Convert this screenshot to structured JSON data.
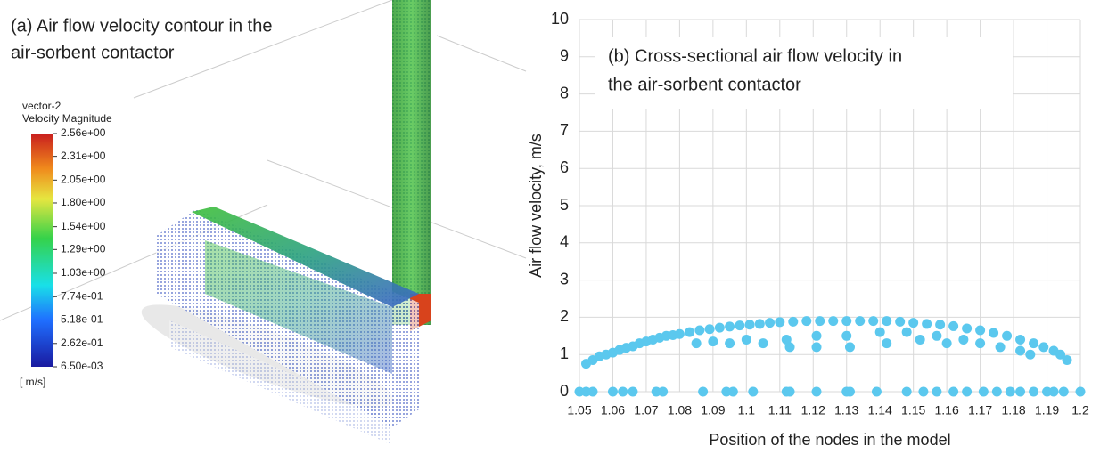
{
  "panel_a": {
    "title_lines": [
      "(a) Air flow velocity contour in the",
      "air-sorbent contactor"
    ],
    "colorbar": {
      "name": "vector-2",
      "quantity": "Velocity Magnitude",
      "unit": "[ m/s]",
      "ticks": [
        {
          "value": 2.56,
          "label": "2.56e+00"
        },
        {
          "value": 2.31,
          "label": "2.31e+00"
        },
        {
          "value": 2.05,
          "label": "2.05e+00"
        },
        {
          "value": 1.8,
          "label": "1.80e+00"
        },
        {
          "value": 1.54,
          "label": "1.54e+00"
        },
        {
          "value": 1.29,
          "label": "1.29e+00"
        },
        {
          "value": 1.03,
          "label": "1.03e+00"
        },
        {
          "value": 0.774,
          "label": "7.74e-01"
        },
        {
          "value": 0.518,
          "label": "5.18e-01"
        },
        {
          "value": 0.262,
          "label": "2.62e-01"
        },
        {
          "value": 0.0065,
          "label": "6.50e-03"
        }
      ]
    }
  },
  "chart_data": {
    "type": "scatter",
    "annotation_lines": [
      "(b) Cross-sectional air flow velocity in",
      "the air-sorbent contactor"
    ],
    "xlabel": "Position of the nodes in the model",
    "ylabel": "Air flow velocity, m/s",
    "xlim": [
      1.05,
      1.2
    ],
    "xticks": [
      1.05,
      1.06,
      1.07,
      1.08,
      1.09,
      1.1,
      1.11,
      1.12,
      1.13,
      1.14,
      1.15,
      1.16,
      1.17,
      1.18,
      1.19,
      1.2
    ],
    "ylim": [
      0,
      10
    ],
    "yticks": [
      0,
      1,
      2,
      3,
      4,
      5,
      6,
      7,
      8,
      9,
      10
    ],
    "grid": true,
    "series": [
      {
        "color": "#5bc8ee",
        "x": [
          1.05,
          1.052,
          1.054,
          1.06,
          1.063,
          1.066,
          1.073,
          1.075,
          1.087,
          1.094,
          1.096,
          1.102,
          1.112,
          1.113,
          1.121,
          1.13,
          1.131,
          1.139,
          1.148,
          1.153,
          1.157,
          1.162,
          1.166,
          1.171,
          1.175,
          1.179,
          1.182,
          1.186,
          1.19,
          1.192,
          1.195,
          1.2,
          1.052,
          1.054,
          1.056,
          1.058,
          1.06,
          1.062,
          1.064,
          1.066,
          1.068,
          1.07,
          1.072,
          1.074,
          1.076,
          1.078,
          1.08,
          1.083,
          1.086,
          1.089,
          1.092,
          1.095,
          1.098,
          1.101,
          1.104,
          1.107,
          1.11,
          1.114,
          1.118,
          1.122,
          1.126,
          1.13,
          1.134,
          1.138,
          1.142,
          1.146,
          1.15,
          1.154,
          1.158,
          1.162,
          1.166,
          1.17,
          1.174,
          1.178,
          1.182,
          1.186,
          1.189,
          1.192,
          1.194,
          1.196,
          1.085,
          1.09,
          1.095,
          1.1,
          1.105,
          1.112,
          1.113,
          1.121,
          1.121,
          1.13,
          1.131,
          1.14,
          1.142,
          1.148,
          1.152,
          1.157,
          1.16,
          1.165,
          1.17,
          1.176,
          1.182,
          1.185
        ],
        "values": [
          0,
          0,
          0,
          0,
          0,
          0,
          0,
          0,
          0,
          0,
          0,
          0,
          0,
          0,
          0,
          0,
          0,
          0,
          0,
          0,
          0,
          0,
          0,
          0,
          0,
          0,
          0,
          0,
          0,
          0,
          0,
          0,
          0.75,
          0.85,
          0.95,
          1.0,
          1.05,
          1.12,
          1.18,
          1.22,
          1.3,
          1.35,
          1.4,
          1.45,
          1.5,
          1.52,
          1.55,
          1.6,
          1.65,
          1.68,
          1.72,
          1.75,
          1.78,
          1.8,
          1.82,
          1.85,
          1.87,
          1.88,
          1.9,
          1.9,
          1.9,
          1.9,
          1.9,
          1.9,
          1.9,
          1.88,
          1.85,
          1.82,
          1.8,
          1.76,
          1.7,
          1.65,
          1.58,
          1.5,
          1.4,
          1.3,
          1.2,
          1.1,
          1.0,
          0.85,
          1.3,
          1.35,
          1.3,
          1.4,
          1.3,
          1.4,
          1.2,
          1.5,
          1.2,
          1.5,
          1.2,
          1.6,
          1.3,
          1.6,
          1.4,
          1.5,
          1.3,
          1.4,
          1.3,
          1.2,
          1.1,
          1.0
        ]
      }
    ]
  }
}
